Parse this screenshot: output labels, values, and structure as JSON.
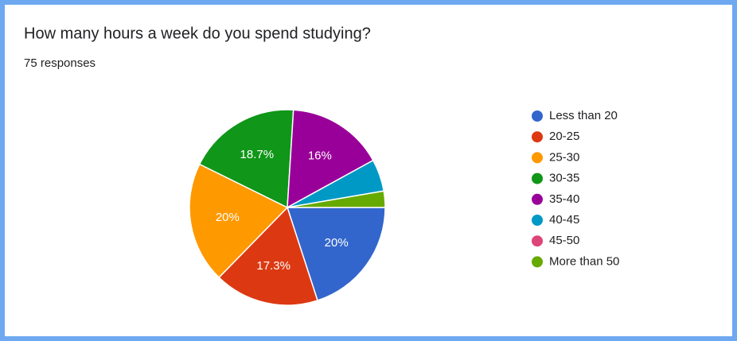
{
  "chart_data": {
    "type": "pie",
    "title": "How many hours a week do you spend studying?",
    "subtitle": "75 responses",
    "categories": [
      "Less than 20",
      "20-25",
      "25-30",
      "30-35",
      "35-40",
      "40-45",
      "45-50",
      "More than 50"
    ],
    "values": [
      20,
      17.3,
      20,
      18.7,
      16,
      5.3,
      0,
      2.7
    ],
    "value_labels": [
      "20%",
      "17.3%",
      "20%",
      "18.7%",
      "16%",
      null,
      null,
      null
    ],
    "colors": [
      "#3366cc",
      "#dc3912",
      "#ff9900",
      "#109618",
      "#990099",
      "#0099c6",
      "#dd4477",
      "#66aa00"
    ],
    "legend": "right"
  }
}
